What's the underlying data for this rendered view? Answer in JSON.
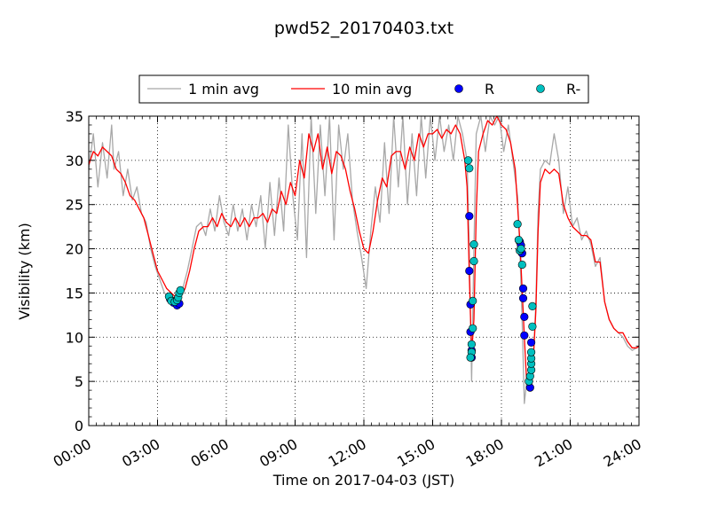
{
  "chart_data": {
    "type": "line",
    "title": "pwd52_20170403.txt",
    "xlabel": "Time on 2017-04-03 (JST)",
    "ylabel": "Visibility (km)",
    "xlim": [
      0,
      24
    ],
    "ylim": [
      0,
      35
    ],
    "x_ticks": [
      {
        "value": 0,
        "label": "00:00"
      },
      {
        "value": 3,
        "label": "03:00"
      },
      {
        "value": 6,
        "label": "06:00"
      },
      {
        "value": 9,
        "label": "09:00"
      },
      {
        "value": 12,
        "label": "12:00"
      },
      {
        "value": 15,
        "label": "15:00"
      },
      {
        "value": 18,
        "label": "18:00"
      },
      {
        "value": 21,
        "label": "21:00"
      },
      {
        "value": 24,
        "label": "24:00"
      }
    ],
    "y_ticks": [
      {
        "value": 0,
        "label": "0"
      },
      {
        "value": 5,
        "label": "5"
      },
      {
        "value": 10,
        "label": "10"
      },
      {
        "value": 15,
        "label": "15"
      },
      {
        "value": 20,
        "label": "20"
      },
      {
        "value": 25,
        "label": "25"
      },
      {
        "value": 30,
        "label": "30"
      },
      {
        "value": 35,
        "label": "35"
      }
    ],
    "grid": true,
    "legend_position": "top, above plot",
    "series": [
      {
        "name": "1 min avg",
        "kind": "line",
        "color": "#a8a8a8",
        "points": [
          [
            0,
            29
          ],
          [
            0.2,
            33
          ],
          [
            0.4,
            27
          ],
          [
            0.6,
            32
          ],
          [
            0.8,
            28
          ],
          [
            1,
            34
          ],
          [
            1.1,
            29
          ],
          [
            1.3,
            31
          ],
          [
            1.5,
            26
          ],
          [
            1.7,
            29
          ],
          [
            1.9,
            25.5
          ],
          [
            2.1,
            27
          ],
          [
            2.3,
            24
          ],
          [
            2.5,
            23
          ],
          [
            2.7,
            20
          ],
          [
            2.9,
            18
          ],
          [
            3.1,
            16.5
          ],
          [
            3.3,
            15
          ],
          [
            3.5,
            14.5
          ],
          [
            3.7,
            13.7
          ],
          [
            3.9,
            14.2
          ],
          [
            4.1,
            15.5
          ],
          [
            4.3,
            17.5
          ],
          [
            4.5,
            20
          ],
          [
            4.7,
            22.5
          ],
          [
            4.9,
            23
          ],
          [
            5.1,
            21.5
          ],
          [
            5.3,
            24.5
          ],
          [
            5.5,
            22
          ],
          [
            5.7,
            26
          ],
          [
            5.9,
            23
          ],
          [
            6.1,
            21.5
          ],
          [
            6.3,
            25
          ],
          [
            6.5,
            22
          ],
          [
            6.7,
            24.5
          ],
          [
            6.9,
            21
          ],
          [
            7.1,
            25
          ],
          [
            7.3,
            22.5
          ],
          [
            7.5,
            26
          ],
          [
            7.7,
            20
          ],
          [
            7.9,
            27.5
          ],
          [
            8.1,
            21.5
          ],
          [
            8.3,
            28
          ],
          [
            8.5,
            22
          ],
          [
            8.7,
            34
          ],
          [
            8.9,
            26
          ],
          [
            9.1,
            21
          ],
          [
            9.3,
            33
          ],
          [
            9.5,
            19
          ],
          [
            9.7,
            35
          ],
          [
            9.9,
            24
          ],
          [
            10.1,
            34
          ],
          [
            10.3,
            26
          ],
          [
            10.5,
            35
          ],
          [
            10.7,
            21
          ],
          [
            10.9,
            34
          ],
          [
            11.1,
            29
          ],
          [
            11.3,
            33
          ],
          [
            11.5,
            25.5
          ],
          [
            11.7,
            22
          ],
          [
            11.9,
            19
          ],
          [
            12.1,
            15.5
          ],
          [
            12.3,
            22
          ],
          [
            12.5,
            27
          ],
          [
            12.7,
            23
          ],
          [
            12.9,
            32
          ],
          [
            13.1,
            24
          ],
          [
            13.3,
            35
          ],
          [
            13.5,
            27
          ],
          [
            13.7,
            35
          ],
          [
            13.9,
            25
          ],
          [
            14.1,
            33
          ],
          [
            14.3,
            26
          ],
          [
            14.5,
            35
          ],
          [
            14.7,
            28
          ],
          [
            14.9,
            35
          ],
          [
            15.1,
            30
          ],
          [
            15.3,
            35
          ],
          [
            15.5,
            31
          ],
          [
            15.7,
            34
          ],
          [
            15.9,
            30
          ],
          [
            16.1,
            35
          ],
          [
            16.3,
            33
          ],
          [
            16.5,
            30
          ],
          [
            16.6,
            20
          ],
          [
            16.7,
            5
          ],
          [
            16.8,
            20
          ],
          [
            16.9,
            33
          ],
          [
            17.1,
            35
          ],
          [
            17.3,
            31
          ],
          [
            17.5,
            35
          ],
          [
            17.7,
            34
          ],
          [
            17.9,
            35
          ],
          [
            18.1,
            31
          ],
          [
            18.3,
            34
          ],
          [
            18.5,
            30
          ],
          [
            18.7,
            26
          ],
          [
            18.8,
            20
          ],
          [
            18.9,
            12
          ],
          [
            19,
            2.5
          ],
          [
            19.1,
            5
          ],
          [
            19.2,
            4.5
          ],
          [
            19.3,
            5
          ],
          [
            19.4,
            8
          ],
          [
            19.5,
            14
          ],
          [
            19.6,
            24
          ],
          [
            19.7,
            29
          ],
          [
            19.9,
            30
          ],
          [
            20.1,
            29.5
          ],
          [
            20.3,
            33
          ],
          [
            20.5,
            30
          ],
          [
            20.7,
            24
          ],
          [
            20.9,
            27
          ],
          [
            21.1,
            22.5
          ],
          [
            21.3,
            23.5
          ],
          [
            21.5,
            21
          ],
          [
            21.7,
            22
          ],
          [
            21.9,
            20.5
          ],
          [
            22.1,
            18
          ],
          [
            22.3,
            19
          ],
          [
            22.5,
            14
          ],
          [
            22.7,
            12
          ],
          [
            22.9,
            11
          ],
          [
            23.1,
            10.5
          ],
          [
            23.3,
            10
          ],
          [
            23.5,
            9
          ],
          [
            23.7,
            8.5
          ],
          [
            23.9,
            8.8
          ],
          [
            24,
            9
          ]
        ]
      },
      {
        "name": "10 min avg",
        "kind": "line",
        "color": "#ff0000",
        "points": [
          [
            0,
            29.5
          ],
          [
            0.2,
            31
          ],
          [
            0.4,
            30.5
          ],
          [
            0.6,
            31.5
          ],
          [
            0.8,
            31
          ],
          [
            1,
            30.5
          ],
          [
            1.2,
            29
          ],
          [
            1.4,
            28.5
          ],
          [
            1.6,
            27.5
          ],
          [
            1.8,
            26
          ],
          [
            2,
            25.5
          ],
          [
            2.2,
            24.5
          ],
          [
            2.4,
            23.5
          ],
          [
            2.6,
            21.5
          ],
          [
            2.8,
            19.5
          ],
          [
            3,
            17.5
          ],
          [
            3.2,
            16.5
          ],
          [
            3.4,
            15.5
          ],
          [
            3.6,
            15
          ],
          [
            3.8,
            14.5
          ],
          [
            4,
            14.5
          ],
          [
            4.2,
            15.5
          ],
          [
            4.4,
            17.5
          ],
          [
            4.6,
            20
          ],
          [
            4.8,
            22
          ],
          [
            5,
            22.5
          ],
          [
            5.2,
            22.5
          ],
          [
            5.4,
            23.5
          ],
          [
            5.6,
            22.5
          ],
          [
            5.8,
            24
          ],
          [
            6,
            23
          ],
          [
            6.2,
            22.5
          ],
          [
            6.4,
            23.5
          ],
          [
            6.6,
            22.5
          ],
          [
            6.8,
            23.5
          ],
          [
            7,
            22.5
          ],
          [
            7.2,
            23.5
          ],
          [
            7.4,
            23.5
          ],
          [
            7.6,
            24
          ],
          [
            7.8,
            23
          ],
          [
            8,
            24.5
          ],
          [
            8.2,
            24
          ],
          [
            8.4,
            26.5
          ],
          [
            8.6,
            25
          ],
          [
            8.8,
            27.5
          ],
          [
            9,
            26
          ],
          [
            9.2,
            30
          ],
          [
            9.4,
            28
          ],
          [
            9.6,
            33
          ],
          [
            9.8,
            31
          ],
          [
            10,
            33
          ],
          [
            10.2,
            29
          ],
          [
            10.4,
            31.5
          ],
          [
            10.6,
            28.5
          ],
          [
            10.8,
            31
          ],
          [
            11,
            30.5
          ],
          [
            11.2,
            29
          ],
          [
            11.4,
            26.5
          ],
          [
            11.6,
            24.5
          ],
          [
            11.8,
            22
          ],
          [
            12,
            20
          ],
          [
            12.2,
            19.5
          ],
          [
            12.4,
            22
          ],
          [
            12.6,
            25.5
          ],
          [
            12.8,
            28
          ],
          [
            13,
            27
          ],
          [
            13.2,
            30.5
          ],
          [
            13.4,
            31
          ],
          [
            13.6,
            31
          ],
          [
            13.8,
            29
          ],
          [
            14,
            31.5
          ],
          [
            14.2,
            30
          ],
          [
            14.4,
            33
          ],
          [
            14.6,
            31.5
          ],
          [
            14.8,
            33
          ],
          [
            15,
            33
          ],
          [
            15.2,
            33.5
          ],
          [
            15.4,
            32.5
          ],
          [
            15.6,
            33.5
          ],
          [
            15.8,
            33
          ],
          [
            16,
            34
          ],
          [
            16.2,
            33
          ],
          [
            16.4,
            30
          ],
          [
            16.5,
            27
          ],
          [
            16.6,
            17
          ],
          [
            16.7,
            8
          ],
          [
            16.8,
            12
          ],
          [
            16.9,
            24
          ],
          [
            17,
            31
          ],
          [
            17.2,
            33
          ],
          [
            17.4,
            34.5
          ],
          [
            17.6,
            34
          ],
          [
            17.8,
            35
          ],
          [
            18,
            34
          ],
          [
            18.2,
            33.5
          ],
          [
            18.4,
            32
          ],
          [
            18.6,
            29
          ],
          [
            18.8,
            21
          ],
          [
            19,
            10
          ],
          [
            19.1,
            5
          ],
          [
            19.2,
            4
          ],
          [
            19.3,
            5
          ],
          [
            19.4,
            8
          ],
          [
            19.5,
            13
          ],
          [
            19.6,
            22
          ],
          [
            19.7,
            27.5
          ],
          [
            19.9,
            29
          ],
          [
            20.1,
            28.5
          ],
          [
            20.3,
            29
          ],
          [
            20.5,
            28.5
          ],
          [
            20.7,
            25
          ],
          [
            20.9,
            23.5
          ],
          [
            21.1,
            22.5
          ],
          [
            21.3,
            22
          ],
          [
            21.5,
            21.5
          ],
          [
            21.7,
            21.5
          ],
          [
            21.9,
            21
          ],
          [
            22.1,
            18.5
          ],
          [
            22.3,
            18.5
          ],
          [
            22.5,
            14
          ],
          [
            22.7,
            12
          ],
          [
            22.9,
            11
          ],
          [
            23.1,
            10.5
          ],
          [
            23.3,
            10.5
          ],
          [
            23.5,
            9.5
          ],
          [
            23.7,
            8.8
          ],
          [
            23.9,
            8.8
          ],
          [
            24,
            9
          ]
        ]
      },
      {
        "name": "R",
        "kind": "marker",
        "color": "#0000ff",
        "points": [
          [
            3.55,
            14.3
          ],
          [
            3.7,
            13.9
          ],
          [
            3.85,
            13.6
          ],
          [
            3.95,
            13.8
          ],
          [
            16.6,
            23.7
          ],
          [
            16.6,
            17.5
          ],
          [
            16.65,
            13.7
          ],
          [
            16.65,
            10.6
          ],
          [
            16.7,
            8.5
          ],
          [
            16.7,
            7.7
          ],
          [
            18.8,
            20.8
          ],
          [
            18.85,
            20.4
          ],
          [
            18.9,
            19.5
          ],
          [
            18.95,
            15.5
          ],
          [
            18.95,
            14.4
          ],
          [
            19.0,
            12.3
          ],
          [
            19.0,
            10.2
          ],
          [
            19.25,
            4.3
          ],
          [
            19.3,
            9.4
          ]
        ]
      },
      {
        "name": "R-",
        "kind": "marker",
        "color": "#00bfbf",
        "points": [
          [
            3.5,
            14.6
          ],
          [
            3.6,
            14.1
          ],
          [
            3.75,
            14.0
          ],
          [
            3.85,
            14.2
          ],
          [
            3.9,
            14.5
          ],
          [
            3.95,
            15.0
          ],
          [
            4.0,
            15.3
          ],
          [
            16.55,
            30.0
          ],
          [
            16.6,
            29.1
          ],
          [
            16.8,
            20.5
          ],
          [
            16.8,
            18.6
          ],
          [
            16.75,
            14.1
          ],
          [
            16.75,
            11.0
          ],
          [
            16.7,
            9.2
          ],
          [
            16.7,
            8.3
          ],
          [
            16.65,
            7.7
          ],
          [
            18.7,
            22.8
          ],
          [
            18.75,
            21.0
          ],
          [
            18.8,
            19.8
          ],
          [
            18.85,
            20.0
          ],
          [
            18.9,
            18.2
          ],
          [
            19.2,
            5.0
          ],
          [
            19.25,
            5.6
          ],
          [
            19.3,
            6.3
          ],
          [
            19.3,
            7.0
          ],
          [
            19.3,
            7.6
          ],
          [
            19.3,
            8.3
          ],
          [
            19.35,
            11.2
          ],
          [
            19.35,
            13.5
          ]
        ]
      }
    ]
  }
}
